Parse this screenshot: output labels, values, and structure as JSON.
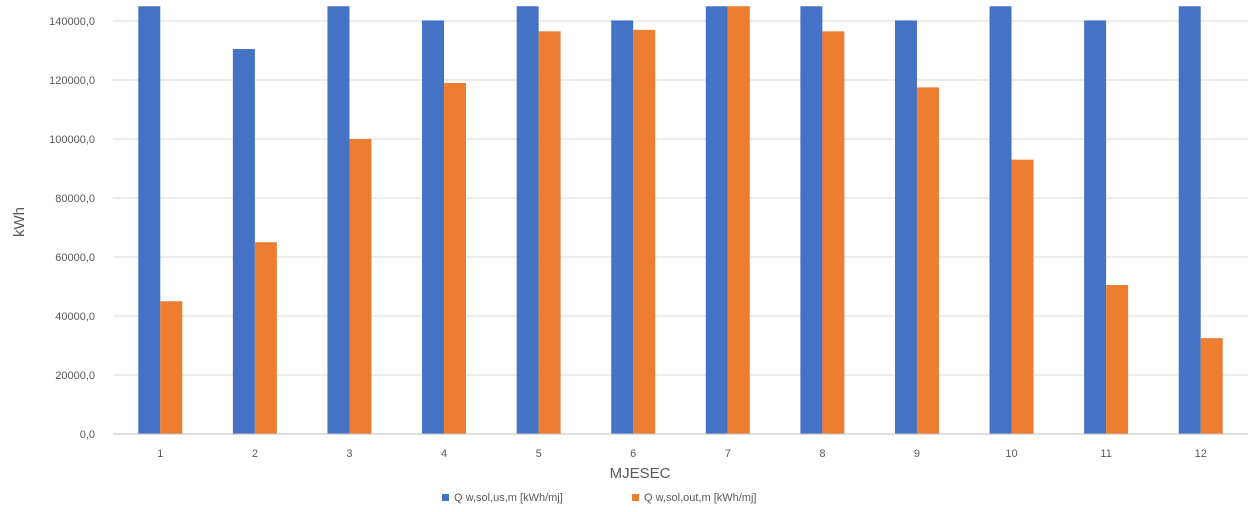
{
  "chart_data": {
    "type": "bar",
    "categories": [
      "1",
      "2",
      "3",
      "4",
      "5",
      "6",
      "7",
      "8",
      "9",
      "10",
      "11",
      "12"
    ],
    "series": [
      {
        "name": "Q w,sol,us,m [kWh/mj]",
        "color": "#4472C4",
        "values": [
          147000,
          130500,
          147000,
          140200,
          147000,
          140200,
          147000,
          147000,
          140200,
          147000,
          140200,
          147000
        ]
      },
      {
        "name": "Q w,sol,out,m [kWh/mj]",
        "color": "#ED7D31",
        "values": [
          45000,
          65000,
          100000,
          119000,
          136500,
          137000,
          145000,
          136500,
          117500,
          93000,
          50500,
          32500
        ]
      }
    ],
    "xlabel": "MJESEC",
    "ylabel": "kWh",
    "ylim": [
      0,
      145000
    ],
    "yticks": [
      "0,0",
      "20000,0",
      "40000,0",
      "60000,0",
      "80000,0",
      "100000,0",
      "120000,0",
      "140000,0"
    ],
    "ytick_values": [
      0,
      20000,
      40000,
      60000,
      80000,
      100000,
      120000,
      140000
    ],
    "grid": true,
    "legend_position": "bottom"
  }
}
